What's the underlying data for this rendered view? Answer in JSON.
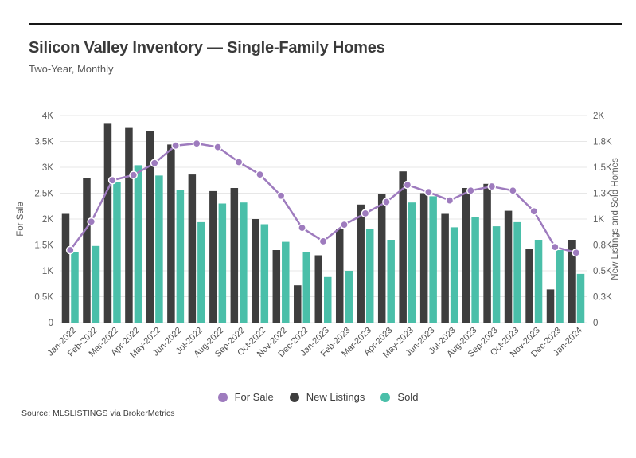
{
  "header": {
    "title": "Silicon Valley Inventory — Single-Family Homes",
    "subtitle": "Two-Year, Monthly"
  },
  "source": {
    "text": "Source: MLSLISTINGS via BrokerMetrics"
  },
  "chart_data": {
    "type": "combo",
    "title": "Silicon Valley Inventory — Single-Family Homes",
    "subtitle": "Two-Year, Monthly",
    "grid": "horizontal",
    "grid_color": "#e7e7e7",
    "legend_position": "bottom",
    "categories": [
      "Jan-2022",
      "Feb-2022",
      "Mar-2022",
      "Apr-2022",
      "May-2022",
      "Jun-2022",
      "Jul-2022",
      "Aug-2022",
      "Sep-2022",
      "Oct-2022",
      "Nov-2022",
      "Dec-2022",
      "Jan-2023",
      "Feb-2023",
      "Mar-2023",
      "Apr-2023",
      "May-2023",
      "Jun-2023",
      "Jul-2023",
      "Aug-2023",
      "Sep-2023",
      "Oct-2023",
      "Nov-2023",
      "Dec-2023",
      "Jan-2024"
    ],
    "left_axis": {
      "label": "For Sale",
      "max": 4000,
      "ticks": [
        "0",
        "0.5K",
        "1K",
        "1.5K",
        "2K",
        "2.5K",
        "3K",
        "3.5K",
        "4K"
      ]
    },
    "right_axis": {
      "label": "New Listings and Sold Homes",
      "max": 2000,
      "ticks": [
        "0",
        "0.3K",
        "0.5K",
        "0.8K",
        "1K",
        "1.3K",
        "1.5K",
        "1.8K",
        "2K"
      ]
    },
    "series": [
      {
        "name": "For Sale",
        "type": "line",
        "axis": "left",
        "color": "#9e7bbe",
        "values": [
          1400,
          1950,
          2750,
          2850,
          3080,
          3420,
          3460,
          3390,
          3100,
          2860,
          2450,
          1830,
          1570,
          1890,
          2110,
          2330,
          2660,
          2520,
          2360,
          2550,
          2630,
          2550,
          2150,
          1460,
          1350
        ]
      },
      {
        "name": "New Listings",
        "type": "bar",
        "axis": "right",
        "color": "#3e3e3e",
        "values": [
          1050,
          1400,
          1920,
          1880,
          1850,
          1720,
          1430,
          1270,
          1300,
          1000,
          700,
          360,
          650,
          900,
          1140,
          1240,
          1460,
          1250,
          1050,
          1300,
          1340,
          1080,
          710,
          320,
          800
        ]
      },
      {
        "name": "Sold",
        "type": "bar",
        "axis": "right",
        "color": "#4abfa9",
        "values": [
          680,
          740,
          1360,
          1520,
          1420,
          1280,
          970,
          1150,
          1160,
          950,
          780,
          680,
          440,
          500,
          900,
          800,
          1160,
          1220,
          920,
          1020,
          930,
          970,
          800,
          700,
          470
        ]
      }
    ]
  }
}
